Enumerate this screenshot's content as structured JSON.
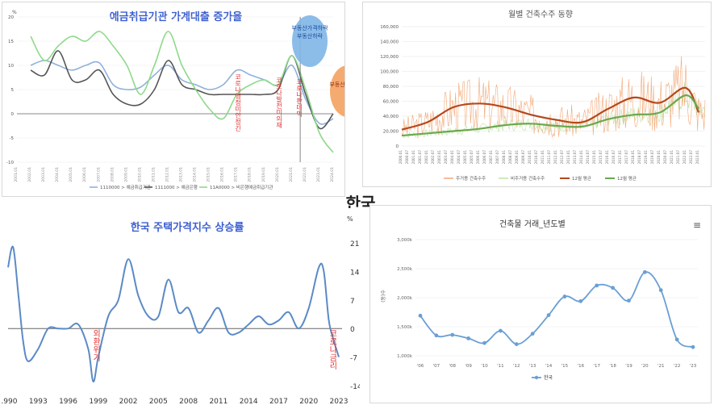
{
  "center_title": "한국",
  "chart_data": [
    {
      "id": "p1",
      "type": "line",
      "title": "예금취급기관 가계대출 증가율",
      "y_unit": "%",
      "ylim": [
        -10,
        20
      ],
      "yticks": [
        "-10",
        "-5",
        "0",
        "5",
        "10",
        "15",
        "20"
      ],
      "xticks": [
        "2001.01",
        "2002.01",
        "2003.01",
        "2004.01",
        "2005.01",
        "2006.01",
        "2007.01",
        "2008.01",
        "2009.01",
        "2010.01",
        "2011.01",
        "2012.01",
        "2013.01",
        "2014.01",
        "2015.01",
        "2016.01",
        "2017.01",
        "2018.01",
        "2019.01",
        "2020.01",
        "2021.01",
        "2022.01",
        "2023.01",
        "2024.01"
      ],
      "legend": [
        "1110000 > 예금취급기관",
        "1111000 > 예금은행",
        "11A0000 > 비은행예금취급기관"
      ],
      "colors": [
        "#8fb1dc",
        "#555555",
        "#8fd98a"
      ],
      "series": [
        {
          "name": "1110000 > 예금취급기관",
          "x": [
            2002,
            2003,
            2004,
            2005,
            2006,
            2007,
            2008,
            2009,
            2010,
            2011,
            2012,
            2013,
            2014,
            2015,
            2016,
            2017,
            2018,
            2019,
            2020,
            2021,
            2022,
            2023,
            2024
          ],
          "values": [
            10,
            11,
            10,
            9,
            10,
            10.5,
            6,
            5,
            5.5,
            8,
            10,
            7,
            6,
            5,
            6,
            9,
            8,
            7,
            6,
            10,
            3,
            -2,
            -1
          ]
        },
        {
          "name": "1111000 > 예금은행",
          "x": [
            2002,
            2003,
            2004,
            2005,
            2006,
            2007,
            2008,
            2009,
            2010,
            2011,
            2012,
            2013,
            2014,
            2015,
            2016,
            2017,
            2018,
            2019,
            2020,
            2021,
            2022,
            2023,
            2024
          ],
          "values": [
            9,
            8,
            13,
            7,
            7,
            9,
            4,
            2,
            2,
            5,
            11,
            6,
            5,
            4,
            4,
            4,
            4,
            4,
            5,
            12,
            4,
            -3,
            0
          ]
        },
        {
          "name": "11A0000 > 비은행예금취급기관",
          "x": [
            2002,
            2003,
            2004,
            2005,
            2006,
            2007,
            2008,
            2009,
            2010,
            2011,
            2012,
            2013,
            2014,
            2015,
            2016,
            2017,
            2018,
            2019,
            2020,
            2021,
            2022,
            2023,
            2024
          ],
          "values": [
            16,
            11,
            14,
            16,
            15,
            17,
            14,
            10,
            4,
            10,
            17,
            10,
            5,
            1,
            -1,
            4,
            6,
            7,
            6,
            12,
            5,
            -4,
            -8
          ]
        }
      ],
      "annotations": [
        "코로나행정미안정긴",
        "코로나발전미의재",
        "코로나판데믹",
        "부동산가격하락",
        "부동산하락",
        "부동산가격상승"
      ]
    },
    {
      "id": "p2",
      "type": "line",
      "title": "월별 건축수주 동향",
      "ylim": [
        0,
        160000
      ],
      "yticks": [
        "0",
        "20,000",
        "40,000",
        "60,000",
        "80,000",
        "100,000",
        "120,000",
        "140,000",
        "160,000"
      ],
      "legend": [
        "주거용 건축수주",
        "비주거용 건축수주",
        "12월 평균",
        "12월 평균"
      ],
      "colors": [
        "#f2a877",
        "#bfe3a4",
        "#b5481c",
        "#6aa84f"
      ],
      "x": [
        2000,
        2002,
        2004,
        2006,
        2008,
        2010,
        2012,
        2014,
        2016,
        2018,
        2020,
        2022,
        2023
      ],
      "series": [
        {
          "name": "주거용 건축수주 12월 평균",
          "values": [
            22000,
            32000,
            52000,
            57000,
            52000,
            42000,
            35000,
            32000,
            50000,
            65000,
            58000,
            78000,
            45000
          ]
        },
        {
          "name": "비주거용 건축수주 12월 평균",
          "values": [
            14000,
            17000,
            20000,
            23000,
            28000,
            30000,
            27000,
            26000,
            36000,
            42000,
            45000,
            68000,
            50000
          ]
        }
      ]
    },
    {
      "id": "p3",
      "type": "line",
      "title": "한국 주택가격지수 상승률",
      "y_unit": "%",
      "ylim": [
        -14,
        21
      ],
      "yticks": [
        "21",
        "14",
        "7",
        "0",
        "-7",
        "-14"
      ],
      "xticks": [
        "1990",
        "1993",
        "1996",
        "1999",
        "2002",
        "2005",
        "2008",
        "2011",
        "2014",
        "2017",
        "2020",
        "2023"
      ],
      "x": [
        1990,
        1990.5,
        1991,
        1991.5,
        1992,
        1993,
        1994,
        1995,
        1996,
        1997,
        1998,
        1998.5,
        1999,
        2000,
        2001,
        2002,
        2003,
        2004,
        2005,
        2006,
        2007,
        2008,
        2009,
        2010,
        2011,
        2012,
        2013,
        2014,
        2015,
        2016,
        2017,
        2018,
        2019,
        2020,
        2021,
        2021.5,
        2022,
        2022.5,
        2023
      ],
      "values": [
        15,
        20,
        9,
        -3,
        -8,
        -5,
        0,
        0,
        0,
        1,
        -5,
        -13,
        -7,
        3,
        7,
        17,
        8,
        3,
        3,
        12,
        4,
        5,
        -1,
        2,
        5,
        -1,
        -1,
        1,
        3,
        1,
        2,
        4,
        0,
        5,
        15,
        14,
        2,
        -3,
        -7
      ],
      "annotations": [
        "외환위기",
        "코로나금리"
      ]
    },
    {
      "id": "p4",
      "type": "line",
      "title": "건축물 거래_년도별",
      "ylabel": "(동)수",
      "ylim": [
        1000,
        3000
      ],
      "yticks": [
        "1,000k",
        "1,500k",
        "2,000k",
        "2,500k",
        "3,000k"
      ],
      "categories": [
        "'06",
        "'07",
        "'08",
        "'09",
        "'10",
        "'11",
        "'12",
        "'13",
        "'14",
        "'15",
        "'16",
        "'17",
        "'18",
        "'19",
        "'20",
        "'21",
        "'22",
        "'23"
      ],
      "series": [
        {
          "name": "한국",
          "values": [
            1690,
            1350,
            1360,
            1300,
            1220,
            1430,
            1200,
            1380,
            1700,
            2020,
            1940,
            2210,
            2170,
            1950,
            2440,
            2130,
            1280,
            1150
          ]
        }
      ],
      "color": "#6a9fd4",
      "menu_icon": "menu-icon"
    }
  ]
}
